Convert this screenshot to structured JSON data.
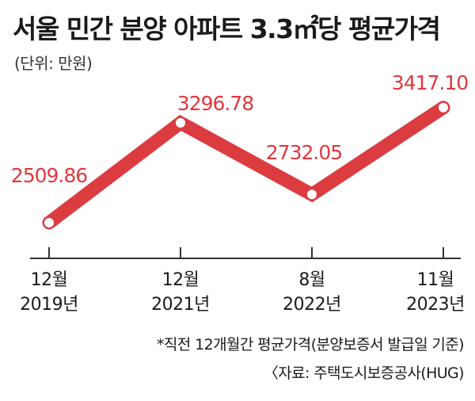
{
  "chart_data": {
    "type": "line",
    "title": "서울 민간 분양 아파트 3.3㎡당 평균가격",
    "unit_label": "(단위: 만원)",
    "categories": [
      {
        "month": "12월",
        "year": "2019년"
      },
      {
        "month": "12월",
        "year": "2021년"
      },
      {
        "month": "8월",
        "year": "2022년"
      },
      {
        "month": "11월",
        "year": "2023년"
      }
    ],
    "values": [
      2509.86,
      3296.78,
      2732.05,
      3417.1
    ],
    "value_labels": [
      "2509.86",
      "3296.78",
      "2732.05",
      "3417.10"
    ],
    "line_color": "#dc3b40",
    "label_color": "#e2373d",
    "footnote": "*직전 12개월간 평균가격(분양보증서 발급일 기준)",
    "source": "〈자료: 주택도시보증공사(HUG)"
  }
}
